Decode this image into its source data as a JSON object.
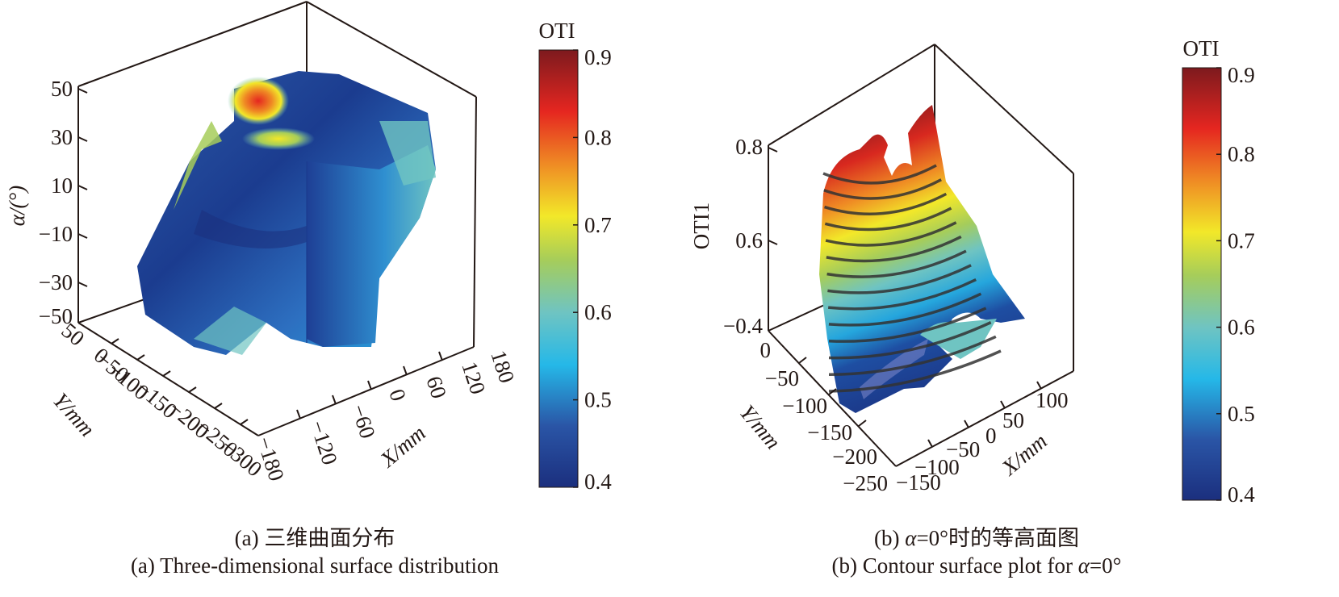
{
  "figure": {
    "panel_a": {
      "caption_cn": "(a) 三维曲面分布",
      "caption_en": "(a) Three-dimensional surface distribution"
    },
    "panel_b": {
      "caption_cn_prefix": "(b) ",
      "caption_cn_alpha": "α",
      "caption_cn_suffix": "=0°时的等高面图",
      "caption_en_prefix": "(b) Contour surface plot for ",
      "caption_en_alpha": "α",
      "caption_en_suffix": "=0°"
    }
  },
  "chart_data": [
    {
      "type": "heatmap",
      "subtype": "3d-surface-volume",
      "panel": "a",
      "title": "Three-dimensional surface distribution",
      "zlabel": "α/(°)",
      "xlabel": "X/mm",
      "ylabel": "Y/mm",
      "z_ticks": [
        "50",
        "30",
        "10",
        "−10",
        "−30",
        "−50"
      ],
      "y_ticks": [
        "50",
        "0",
        "−50",
        "−100",
        "−150",
        "−200",
        "−250",
        "−300"
      ],
      "x_ticks": [
        "−180",
        "−120",
        "−60",
        "0",
        "60",
        "120",
        "180"
      ],
      "zlim": [
        -50,
        50
      ],
      "ylim": [
        -300,
        50
      ],
      "xlim": [
        -180,
        180
      ],
      "colorbar": {
        "label": "OTI",
        "ticks": [
          "0.4",
          "0.5",
          "0.6",
          "0.7",
          "0.8",
          "0.9"
        ],
        "range": [
          0.4,
          0.9
        ],
        "colors": [
          "#1b2f7e",
          "#2d5aa8",
          "#25b8e8",
          "#6fc4c2",
          "#a6cd5a",
          "#f2e829",
          "#ef8a24",
          "#e52620",
          "#7d1a1e"
        ]
      },
      "observations": [
        {
          "region": "upper notch near α≈50°",
          "oti_approx": 0.85
        },
        {
          "region": "ridge near α≈30°",
          "oti_approx": 0.72
        },
        {
          "region": "bulk interior",
          "oti_approx": 0.45
        }
      ]
    },
    {
      "type": "heatmap",
      "subtype": "3d-contour-surface",
      "panel": "b",
      "title": "Contour surface plot for α=0°",
      "zlabel": "OTI1",
      "xlabel": "X/mm",
      "ylabel": "Y/mm",
      "z_ticks": [
        "0.8",
        "0.6",
        "−0.4"
      ],
      "y_ticks": [
        "0",
        "−50",
        "−100",
        "−150",
        "−200",
        "−250"
      ],
      "x_ticks": [
        "−150",
        "−100",
        "−50",
        "0",
        "50",
        "100"
      ],
      "ylim": [
        -250,
        0
      ],
      "xlim": [
        -150,
        100
      ],
      "contour_levels_count": 14,
      "colorbar": {
        "label": "OTI",
        "ticks": [
          "0.4",
          "0.5",
          "0.6",
          "0.7",
          "0.8",
          "0.9"
        ],
        "range": [
          0.4,
          0.9
        ],
        "colors": [
          "#1b2f7e",
          "#2d5aa8",
          "#25b8e8",
          "#6fc4c2",
          "#a6cd5a",
          "#f2e829",
          "#ef8a24",
          "#e52620",
          "#7d1a1e"
        ]
      }
    }
  ]
}
